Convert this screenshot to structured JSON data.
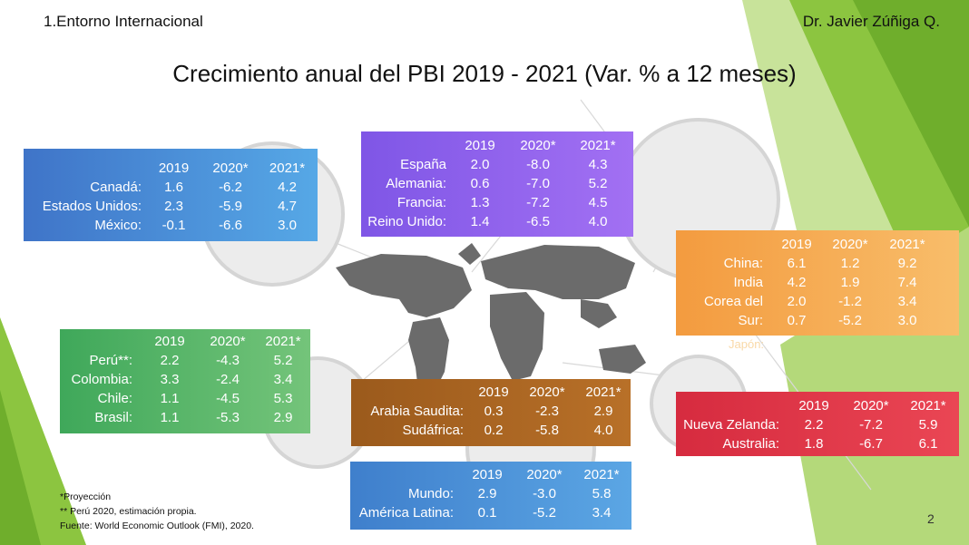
{
  "header": {
    "left": "1.Entorno Internacional",
    "right": "Dr. Javier Zúñiga Q."
  },
  "title": "Crecimiento anual del PBI 2019 - 2021 (Var. % a 12 meses)",
  "colors": {
    "north_america": "#4a86d0",
    "europe": "#8f63ee",
    "asia": "#f2a24a",
    "south_america": "#4caf62",
    "middle_east_africa": "#a8621f",
    "oceania": "#de3346",
    "world": "#3f86cf",
    "green_accent": "#8cc540"
  },
  "panels": {
    "north_america": {
      "years": [
        "2019",
        "2020*",
        "2021*"
      ],
      "rows": [
        {
          "label": "Canadá:",
          "v": [
            "1.6",
            "-6.2",
            "4.2"
          ]
        },
        {
          "label": "Estados Unidos:",
          "v": [
            "2.3",
            "-5.9",
            "4.7"
          ]
        },
        {
          "label": "México:",
          "v": [
            "-0.1",
            "-6.6",
            "3.0"
          ]
        }
      ]
    },
    "europe": {
      "years": [
        "2019",
        "2020*",
        "2021*"
      ],
      "rows": [
        {
          "label": "España",
          "v": [
            "2.0",
            "-8.0",
            "4.3"
          ]
        },
        {
          "label": "Alemania:",
          "v": [
            "0.6",
            "-7.0",
            "5.2"
          ]
        },
        {
          "label": "Francia:",
          "v": [
            "1.3",
            "-7.2",
            "4.5"
          ]
        },
        {
          "label": "Reino Unido:",
          "v": [
            "1.4",
            "-6.5",
            "4.0"
          ]
        }
      ]
    },
    "asia": {
      "years": [
        "2019",
        "2020*",
        "2021*"
      ],
      "rows": [
        {
          "label": "China:",
          "v": [
            "6.1",
            "1.2",
            "9.2"
          ]
        },
        {
          "label": "India",
          "v": [
            "4.2",
            "1.9",
            "7.4"
          ]
        },
        {
          "label": "Corea del",
          "v": [
            "2.0",
            "-1.2",
            "3.4"
          ]
        },
        {
          "label": "Sur:",
          "v": [
            "0.7",
            "-5.2",
            "3.0"
          ]
        }
      ],
      "ghost": "Japón:"
    },
    "south_america": {
      "years": [
        "2019",
        "2020*",
        "2021*"
      ],
      "rows": [
        {
          "label": "Perú**:",
          "v": [
            "2.2",
            "-4.3",
            "5.2"
          ]
        },
        {
          "label": "Colombia:",
          "v": [
            "3.3",
            "-2.4",
            "3.4"
          ]
        },
        {
          "label": "Chile:",
          "v": [
            "1.1",
            "-4.5",
            "5.3"
          ]
        },
        {
          "label": "Brasil:",
          "v": [
            "1.1",
            "-5.3",
            "2.9"
          ]
        }
      ]
    },
    "middle_east_africa": {
      "years": [
        "2019",
        "2020*",
        "2021*"
      ],
      "rows": [
        {
          "label": "Arabia Saudita:",
          "v": [
            "0.3",
            "-2.3",
            "2.9"
          ]
        },
        {
          "label": "Sudáfrica:",
          "v": [
            "0.2",
            "-5.8",
            "4.0"
          ]
        }
      ]
    },
    "oceania": {
      "years": [
        "2019",
        "2020*",
        "2021*"
      ],
      "rows": [
        {
          "label": "Nueva Zelanda:",
          "v": [
            "2.2",
            "-7.2",
            "5.9"
          ]
        },
        {
          "label": "Australia:",
          "v": [
            "1.8",
            "-6.7",
            "6.1"
          ]
        }
      ]
    },
    "world": {
      "years": [
        "2019",
        "2020*",
        "2021*"
      ],
      "rows": [
        {
          "label": "Mundo:",
          "v": [
            "2.9",
            "-3.0",
            "5.8"
          ]
        },
        {
          "label": "América Latina:",
          "v": [
            "0.1",
            "-5.2",
            "3.4"
          ]
        }
      ]
    }
  },
  "footnotes": [
    "*Proyección",
    "** Perú 2020, estimación propia.",
    "Fuente: World Economic Outlook (FMI), 2020."
  ],
  "page_number": "2"
}
